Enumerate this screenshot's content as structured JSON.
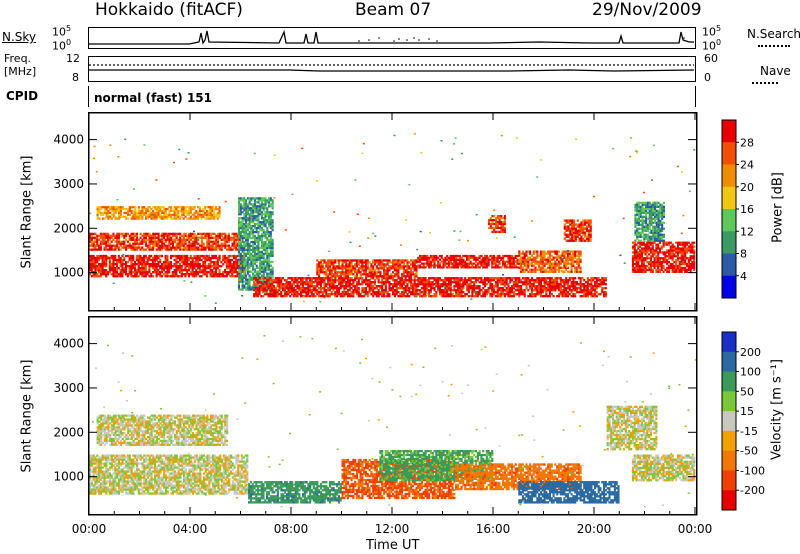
{
  "header": {
    "station": "Hokkaido (fitACF)",
    "beam": "Beam 07",
    "date": "29/Nov/2009"
  },
  "top_panels": {
    "nsky_label": "N.Sky",
    "nsky_ticks": [
      "10^5",
      "10^0"
    ],
    "nsearch_label": "N.Search",
    "freq_label_1": "Freq.",
    "freq_label_2": "[MHz]",
    "freq_ticks": [
      "12",
      "8"
    ],
    "nave_ticks": [
      "60",
      "0"
    ],
    "nave_label": "Nave",
    "cpid_label": "CPID",
    "cpid_value": "normal (fast) 151"
  },
  "colors": {
    "power_scale": [
      "#0000e6",
      "#2a5aa8",
      "#3c9a64",
      "#5ec85a",
      "#f0c814",
      "#f08c00",
      "#f05000",
      "#e60000"
    ],
    "velocity_scale": [
      "#1a2ec8",
      "#2a6aa0",
      "#3a9a5a",
      "#7ac83a",
      "#c8c8c0",
      "#f0a000",
      "#f07800",
      "#f04000",
      "#e60000"
    ],
    "gray_scatter": "#c8c8c0"
  },
  "chart_data": [
    {
      "type": "heatmap",
      "name_in_image": "Power",
      "xlabel": "Time UT",
      "ylabel": "Slant Range [km]",
      "x_ticks": [
        "00:00",
        "04:00",
        "08:00",
        "12:00",
        "16:00",
        "20:00",
        "00:00"
      ],
      "x_tick_hours": [
        0,
        4,
        8,
        12,
        16,
        20,
        24
      ],
      "y_ticks": [
        1000,
        2000,
        3000,
        4000
      ],
      "xlim": [
        0,
        24
      ],
      "ylim": [
        180,
        4600
      ],
      "colorbar_title": "Power [dB]",
      "colorbar_ticks": [
        "4",
        "8",
        "12",
        "16",
        "20",
        "24",
        "28"
      ],
      "colorbar_range": [
        0,
        30
      ],
      "regions": [
        {
          "t0": 0.0,
          "t1": 6.2,
          "r0": 900,
          "r1": 1400,
          "value": 28
        },
        {
          "t0": 0.0,
          "t1": 6.0,
          "r0": 1500,
          "r1": 1900,
          "value": 26
        },
        {
          "t0": 0.3,
          "t1": 5.2,
          "r0": 2200,
          "r1": 2500,
          "value": 20
        },
        {
          "t0": 5.9,
          "t1": 7.3,
          "r0": 600,
          "r1": 2700,
          "value": 10
        },
        {
          "t0": 6.5,
          "t1": 20.5,
          "r0": 450,
          "r1": 900,
          "value": 28
        },
        {
          "t0": 9.0,
          "t1": 13.0,
          "r0": 900,
          "r1": 1300,
          "value": 26
        },
        {
          "t0": 13.0,
          "t1": 17.0,
          "r0": 1100,
          "r1": 1400,
          "value": 28
        },
        {
          "t0": 17.0,
          "t1": 19.5,
          "r0": 1000,
          "r1": 1500,
          "value": 24
        },
        {
          "t0": 15.8,
          "t1": 16.5,
          "r0": 1900,
          "r1": 2300,
          "value": 26
        },
        {
          "t0": 18.8,
          "t1": 19.9,
          "r0": 1700,
          "r1": 2200,
          "value": 26
        },
        {
          "t0": 21.5,
          "t1": 24.0,
          "r0": 1000,
          "r1": 1700,
          "value": 28
        },
        {
          "t0": 21.6,
          "t1": 22.8,
          "r0": 1700,
          "r1": 2600,
          "value": 10
        }
      ]
    },
    {
      "type": "heatmap",
      "name_in_image": "Velocity",
      "xlabel": "Time UT",
      "ylabel": "Slant Range [km]",
      "x_ticks": [
        "00:00",
        "04:00",
        "08:00",
        "12:00",
        "16:00",
        "20:00",
        "00:00"
      ],
      "x_tick_hours": [
        0,
        4,
        8,
        12,
        16,
        20,
        24
      ],
      "y_ticks": [
        1000,
        2000,
        3000,
        4000
      ],
      "xlim": [
        0,
        24
      ],
      "ylim": [
        180,
        4600
      ],
      "colorbar_title": "Velocity [m s⁻¹]",
      "colorbar_ticks": [
        "200",
        "100",
        "50",
        "15",
        "-15",
        "-50",
        "-100",
        "-200"
      ],
      "regions": [
        {
          "t0": 0.0,
          "t1": 6.3,
          "r0": 600,
          "r1": 1500,
          "value": 0
        },
        {
          "t0": 0.3,
          "t1": 5.5,
          "r0": 1700,
          "r1": 2400,
          "value": 0
        },
        {
          "t0": 6.3,
          "t1": 10.0,
          "r0": 400,
          "r1": 900,
          "value": 60
        },
        {
          "t0": 10.0,
          "t1": 14.5,
          "r0": 500,
          "r1": 1400,
          "value": -80
        },
        {
          "t0": 11.5,
          "t1": 16.0,
          "r0": 900,
          "r1": 1600,
          "value": 40
        },
        {
          "t0": 14.5,
          "t1": 19.5,
          "r0": 700,
          "r1": 1300,
          "value": -60
        },
        {
          "t0": 17.0,
          "t1": 21.0,
          "r0": 400,
          "r1": 900,
          "value": 120
        },
        {
          "t0": 21.5,
          "t1": 24.0,
          "r0": 900,
          "r1": 1500,
          "value": 0
        },
        {
          "t0": 20.5,
          "t1": 22.5,
          "r0": 1600,
          "r1": 2600,
          "value": 0
        }
      ]
    }
  ]
}
